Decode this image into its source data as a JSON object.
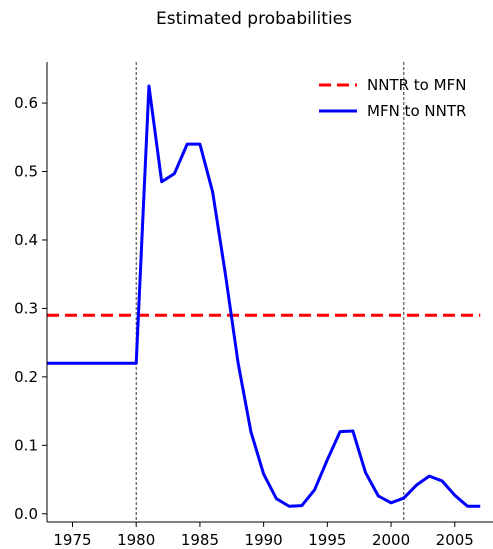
{
  "chart_data": {
    "type": "line",
    "title": "Estimated probabilities",
    "xlabel": "",
    "ylabel": "",
    "xlim": [
      1973,
      2008
    ],
    "ylim": [
      -0.012,
      0.66
    ],
    "x_ticks": [
      1975,
      1980,
      1985,
      1990,
      1995,
      2000,
      2005
    ],
    "x_tick_labels": [
      "1975",
      "1980",
      "1985",
      "1990",
      "1995",
      "2000",
      "2005"
    ],
    "y_ticks": [
      0.0,
      0.1,
      0.2,
      0.3,
      0.4,
      0.5,
      0.6
    ],
    "y_tick_labels": [
      "0.0",
      "0.1",
      "0.2",
      "0.3",
      "0.4",
      "0.5",
      "0.6"
    ],
    "vlines": [
      1980,
      2001
    ],
    "legend_position": "top-right",
    "grid": false,
    "series": [
      {
        "name": "NNTR to MFN",
        "color": "#ff0000",
        "style": "dashed",
        "x": [
          1973,
          2007
        ],
        "y": [
          0.29,
          0.29
        ]
      },
      {
        "name": "MFN to NNTR",
        "color": "#0000ff",
        "style": "solid",
        "x": [
          1973,
          1980,
          1981,
          1982,
          1983,
          1984,
          1985,
          1986,
          1987,
          1988,
          1989,
          1990,
          1991,
          1992,
          1993,
          1994,
          1995,
          1996,
          1997,
          1998,
          1999,
          2000,
          2001,
          2002,
          2003,
          2004,
          2005,
          2006,
          2007
        ],
        "y": [
          0.22,
          0.22,
          0.625,
          0.485,
          0.497,
          0.54,
          0.54,
          0.47,
          0.35,
          0.22,
          0.12,
          0.058,
          0.022,
          0.011,
          0.012,
          0.035,
          0.079,
          0.12,
          0.121,
          0.06,
          0.026,
          0.016,
          0.023,
          0.042,
          0.055,
          0.048,
          0.027,
          0.011,
          0.011
        ]
      }
    ]
  }
}
